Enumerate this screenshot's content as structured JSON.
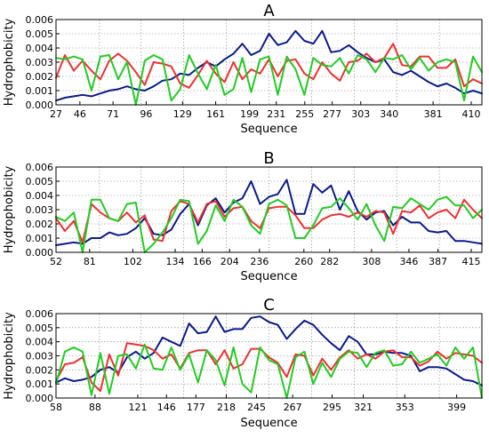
{
  "colors": {
    "blue": "#0a1a8c",
    "red": "#f03030",
    "green": "#22cc22"
  },
  "chart_data": [
    {
      "type": "line",
      "title": "A",
      "xlabel": "Sequence",
      "ylabel": "Hydrophobicity",
      "ylim": [
        0,
        0.006
      ],
      "yticks": [
        "0.000",
        "0.001",
        "0.002",
        "0.003",
        "0.004",
        "0.005",
        "0.006"
      ],
      "xticks": [
        "27",
        "46",
        "71",
        "96",
        "129",
        "161",
        "199",
        "231",
        "255",
        "277",
        "303",
        "340",
        "381",
        "410"
      ],
      "series": [
        {
          "color": "blue",
          "values": [
            0.0003,
            0.0005,
            0.0006,
            0.0007,
            0.0006,
            0.0008,
            0.001,
            0.0011,
            0.0013,
            0.0011,
            0.001,
            0.0013,
            0.0017,
            0.0018,
            0.0022,
            0.0021,
            0.0026,
            0.003,
            0.0027,
            0.0032,
            0.0036,
            0.0043,
            0.0035,
            0.0038,
            0.005,
            0.0042,
            0.0044,
            0.0052,
            0.0045,
            0.0043,
            0.0052,
            0.0037,
            0.0038,
            0.0042,
            0.0037,
            0.0033,
            0.003,
            0.0032,
            0.0023,
            0.0021,
            0.0024,
            0.002,
            0.0016,
            0.0013,
            0.0015,
            0.0012,
            0.0008,
            0.001,
            0.0008
          ]
        },
        {
          "color": "red",
          "values": [
            0.0019,
            0.0035,
            0.0024,
            0.0031,
            0.0024,
            0.0018,
            0.0031,
            0.0036,
            0.0031,
            0.0023,
            0.0014,
            0.003,
            0.0029,
            0.0027,
            0.0015,
            0.0012,
            0.0021,
            0.0031,
            0.0022,
            0.0016,
            0.003,
            0.0018,
            0.0025,
            0.0022,
            0.0032,
            0.002,
            0.0031,
            0.0032,
            0.0022,
            0.0018,
            0.003,
            0.0022,
            0.0017,
            0.003,
            0.0031,
            0.0036,
            0.003,
            0.0033,
            0.0043,
            0.0028,
            0.0027,
            0.0034,
            0.0034,
            0.0026,
            0.0026,
            0.0032,
            0.0013,
            0.0018,
            0.0015
          ]
        },
        {
          "color": "green",
          "values": [
            0.0033,
            0.0032,
            0.0034,
            0.0032,
            0.001,
            0.0034,
            0.0035,
            0.0018,
            0.003,
            0.0,
            0.0031,
            0.0035,
            0.0032,
            0.0003,
            0.0011,
            0.0035,
            0.0022,
            0.0011,
            0.0028,
            0.0007,
            0.0011,
            0.0033,
            0.0009,
            0.0032,
            0.0034,
            0.0007,
            0.0034,
            0.0025,
            0.0007,
            0.0033,
            0.0028,
            0.0027,
            0.0033,
            0.0022,
            0.0035,
            0.0032,
            0.0023,
            0.0033,
            0.0032,
            0.0035,
            0.0025,
            0.0033,
            0.0024,
            0.003,
            0.0032,
            0.003,
            0.0003,
            0.0034,
            0.0023
          ]
        }
      ]
    },
    {
      "type": "line",
      "title": "B",
      "xlabel": "Sequence",
      "ylabel": "Hydrophobicity",
      "ylim": [
        0,
        0.006
      ],
      "yticks": [
        "0.000",
        "0.001",
        "0.002",
        "0.003",
        "0.004",
        "0.005",
        "0.006"
      ],
      "xticks": [
        "52",
        "81",
        "102",
        "134",
        "166",
        "204",
        "236",
        "260",
        "282",
        "308",
        "346",
        "387",
        "415"
      ],
      "series": [
        {
          "color": "blue",
          "values": [
            0.0005,
            0.0006,
            0.0007,
            0.0006,
            0.001,
            0.001,
            0.0014,
            0.0012,
            0.0013,
            0.0017,
            0.0024,
            0.0013,
            0.0012,
            0.0016,
            0.0027,
            0.0034,
            0.0019,
            0.0033,
            0.0038,
            0.0028,
            0.0035,
            0.0038,
            0.005,
            0.0034,
            0.0039,
            0.0041,
            0.0051,
            0.0027,
            0.0027,
            0.0048,
            0.0042,
            0.0047,
            0.003,
            0.0043,
            0.0029,
            0.0023,
            0.0028,
            0.0029,
            0.0019,
            0.0025,
            0.0021,
            0.0021,
            0.0015,
            0.0014,
            0.0015,
            0.0008,
            0.0008,
            0.0007,
            0.0006
          ]
        },
        {
          "color": "red",
          "values": [
            0.0024,
            0.0015,
            0.0022,
            0.0007,
            0.0034,
            0.0028,
            0.0024,
            0.0022,
            0.0028,
            0.0021,
            0.0026,
            0.0009,
            0.0008,
            0.0029,
            0.0036,
            0.0034,
            0.0021,
            0.0034,
            0.0036,
            0.0025,
            0.0031,
            0.0032,
            0.0022,
            0.0017,
            0.0031,
            0.0032,
            0.0032,
            0.0026,
            0.0017,
            0.0017,
            0.0023,
            0.0026,
            0.0027,
            0.0025,
            0.0028,
            0.0025,
            0.0029,
            0.0028,
            0.0013,
            0.0029,
            0.0028,
            0.0033,
            0.0024,
            0.0028,
            0.003,
            0.0024,
            0.0037,
            0.003,
            0.0024
          ]
        },
        {
          "color": "green",
          "values": [
            0.0025,
            0.0022,
            0.0028,
            0.0,
            0.0037,
            0.0037,
            0.0024,
            0.0022,
            0.0034,
            0.0035,
            0.0,
            0.0006,
            0.0014,
            0.0024,
            0.0037,
            0.0036,
            0.0006,
            0.0015,
            0.0033,
            0.0022,
            0.0037,
            0.0032,
            0.0019,
            0.0013,
            0.0034,
            0.0037,
            0.0033,
            0.001,
            0.001,
            0.0019,
            0.0031,
            0.0032,
            0.0038,
            0.0031,
            0.0023,
            0.0034,
            0.0019,
            0.0008,
            0.0032,
            0.0031,
            0.0038,
            0.0034,
            0.003,
            0.0037,
            0.0039,
            0.0033,
            0.0033,
            0.0024,
            0.003
          ]
        }
      ]
    },
    {
      "type": "line",
      "title": "C",
      "xlabel": "Sequence",
      "ylabel": "Hydrophobicity",
      "ylim": [
        0,
        0.006
      ],
      "yticks": [
        "0.000",
        "0.001",
        "0.002",
        "0.003",
        "0.004",
        "0.005",
        "0.006"
      ],
      "xticks": [
        "58",
        "88",
        "121",
        "146",
        "177",
        "218",
        "245",
        "267",
        "295",
        "321",
        "353",
        "399"
      ],
      "series": [
        {
          "color": "blue",
          "values": [
            0.0011,
            0.0014,
            0.0012,
            0.0013,
            0.0015,
            0.002,
            0.0022,
            0.0018,
            0.0029,
            0.0033,
            0.0028,
            0.0032,
            0.0043,
            0.004,
            0.0037,
            0.0053,
            0.0046,
            0.0047,
            0.0058,
            0.0047,
            0.0049,
            0.0049,
            0.0057,
            0.0058,
            0.0054,
            0.0052,
            0.0042,
            0.0049,
            0.0055,
            0.0052,
            0.0045,
            0.0039,
            0.0034,
            0.0044,
            0.004,
            0.0031,
            0.0031,
            0.0033,
            0.0032,
            0.0032,
            0.003,
            0.0019,
            0.0022,
            0.0022,
            0.0021,
            0.0017,
            0.0013,
            0.0012,
            0.0009
          ]
        },
        {
          "color": "red",
          "values": [
            0.0012,
            0.0024,
            0.0025,
            0.0029,
            0.0011,
            0.0005,
            0.0031,
            0.0016,
            0.0039,
            0.0038,
            0.0037,
            0.0034,
            0.0028,
            0.0031,
            0.0021,
            0.0032,
            0.0034,
            0.0034,
            0.0024,
            0.0034,
            0.0021,
            0.0024,
            0.0035,
            0.0035,
            0.0029,
            0.0025,
            0.0015,
            0.0031,
            0.003,
            0.0016,
            0.0028,
            0.002,
            0.0029,
            0.0034,
            0.0028,
            0.0031,
            0.0028,
            0.0033,
            0.0034,
            0.0029,
            0.0029,
            0.0023,
            0.0026,
            0.0033,
            0.0028,
            0.0032,
            0.0031,
            0.003,
            0.0025
          ]
        },
        {
          "color": "green",
          "values": [
            0.001,
            0.0033,
            0.0036,
            0.0033,
            0.0002,
            0.0032,
            0.0003,
            0.003,
            0.0031,
            0.0021,
            0.0038,
            0.0021,
            0.002,
            0.0036,
            0.002,
            0.0031,
            0.0011,
            0.0034,
            0.0027,
            0.0009,
            0.0036,
            0.001,
            0.0004,
            0.0036,
            0.0027,
            0.0024,
            0.0,
            0.0029,
            0.0033,
            0.001,
            0.0025,
            0.0015,
            0.0028,
            0.0033,
            0.0032,
            0.0022,
            0.0032,
            0.0034,
            0.0023,
            0.0024,
            0.0033,
            0.0025,
            0.0028,
            0.0031,
            0.0023,
            0.0036,
            0.0028,
            0.0036,
            0.0
          ]
        }
      ]
    }
  ]
}
